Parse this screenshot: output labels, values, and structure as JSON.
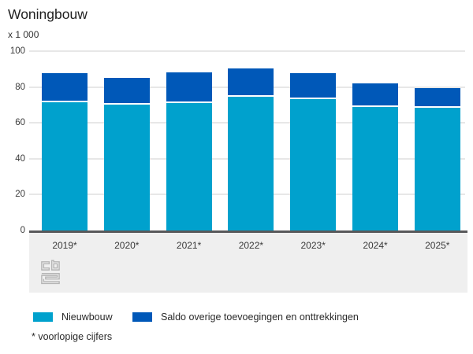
{
  "title": "Woningbouw",
  "unit_label": "x 1 000",
  "footnote": "* voorlopige cijfers",
  "colors": {
    "nieuwbouw": "#00a1cd",
    "saldo": "#0058b8",
    "gridline": "#e7e7e7",
    "axis_line": "#58585a",
    "footer_band": "#efefef",
    "logo_gray": "#b5b5b5"
  },
  "logo": "cbs-logo",
  "chart_data": {
    "type": "bar",
    "stacked": true,
    "title": "Woningbouw",
    "ylabel": "x 1 000",
    "categories": [
      "2019*",
      "2020*",
      "2021*",
      "2022*",
      "2023*",
      "2024*",
      "2025*"
    ],
    "series": [
      {
        "name": "Nieuwbouw",
        "color": "#00a1cd",
        "values": [
          71.5,
          70.0,
          71.2,
          74.5,
          73.1,
          68.9,
          68.5
        ]
      },
      {
        "name": "Saldo overige toevoegingen en onttrekkingen",
        "color": "#0058b8",
        "values": [
          16.4,
          14.9,
          17.1,
          15.7,
          14.8,
          13.3,
          10.8
        ]
      }
    ],
    "totals": [
      87.9,
      84.9,
      88.3,
      90.2,
      87.9,
      82.2,
      79.3
    ],
    "ylim": [
      0,
      100
    ],
    "yticks": [
      0,
      20,
      40,
      60,
      80,
      100
    ],
    "grid": true,
    "legend_position": "bottom"
  }
}
